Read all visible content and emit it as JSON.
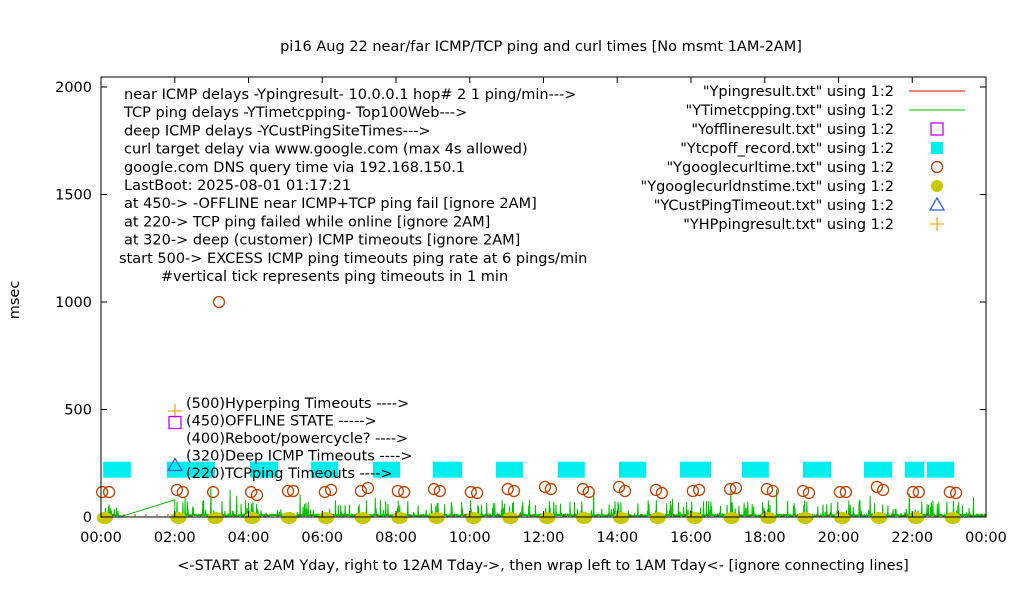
{
  "chart_data": {
    "type": "scatter",
    "title": "pi16 Aug 22  near/far ICMP/TCP ping and curl times [No msmt 1AM-2AM]",
    "xlabel": "<-START at 2AM Yday, right to 12AM Tday->, then wrap left to 1AM Tday<- [ignore connecting lines]",
    "ylabel": "msec",
    "xlim": [
      0,
      24
    ],
    "ylim": [
      0,
      2000
    ],
    "x_unit": "hours",
    "x_ticks": [
      "00:00",
      "02:00",
      "04:00",
      "06:00",
      "08:00",
      "10:00",
      "12:00",
      "14:00",
      "16:00",
      "18:00",
      "20:00",
      "22:00",
      "00:00"
    ],
    "y_ticks": [
      "0",
      "500",
      "1000",
      "1500",
      "2000"
    ],
    "grid": false,
    "legend_position": "top-right",
    "notes": [
      "near ICMP delays -Ypingresult- 10.0.0.1 hop# 2 1 ping/min--->",
      "TCP ping delays -YTimetcpping- Top100Web--->",
      "deep ICMP delays -YCustPingSiteTimes--->",
      "curl target delay via www.google.com (max 4s allowed)",
      "google.com DNS query time via 192.168.150.1",
      "LastBoot: 2025-08-01 01:17:21",
      "at 450-> -OFFLINE near ICMP+TCP ping fail [ignore 2AM]",
      "at 220-> TCP ping failed while online [ignore 2AM]",
      "at 320-> deep (customer) ICMP timeouts [ignore 2AM]",
      "start 500-> EXCESS ICMP ping timeouts ping rate at 6 pings/min",
      "        #vertical tick represents ping timeouts in 1 min"
    ],
    "level_labels": [
      {
        "text": "(500)Hyperping Timeouts ---->",
        "marker": "plus",
        "color": "#f5a623"
      },
      {
        "text": "(450)OFFLINE STATE ----->",
        "marker": "open-square",
        "color": "#c000ff"
      },
      {
        "text": "(400)Reboot/powercycle? ---->",
        "marker": "",
        "color": ""
      },
      {
        "text": "(320)Deep ICMP Timeouts ---->",
        "marker": "open-triangle",
        "color": "#3060e0"
      },
      {
        "text": "(220)TCPping Timeouts ---->",
        "marker": "",
        "color": ""
      }
    ],
    "series": [
      {
        "name": "\"Ypingresult.txt\" using 1:2",
        "style": "line",
        "color": "#ff0000",
        "level": 0
      },
      {
        "name": "\"YTimetcpping.txt\" using 1:2",
        "style": "line",
        "color": "#00c000",
        "typical_range": [
          5,
          80
        ]
      },
      {
        "name": "\"Yofflineresult.txt\" using 1:2",
        "style": "open-square",
        "color": "#c000ff",
        "points": []
      },
      {
        "name": "\"Ytcpoff_record.txt\" using 1:2",
        "style": "filled-square",
        "color": "#00eeee",
        "value": 220,
        "ranges": [
          [
            0.14,
            0.73
          ],
          [
            1.87,
            3.01
          ],
          [
            4.12,
            4.72
          ],
          [
            5.78,
            6.35
          ],
          [
            7.46,
            8.03
          ],
          [
            9.08,
            9.71
          ],
          [
            10.79,
            11.36
          ],
          [
            12.47,
            13.04
          ],
          [
            14.13,
            14.7
          ],
          [
            15.78,
            16.46
          ],
          [
            17.46,
            18.03
          ],
          [
            19.12,
            19.72
          ],
          [
            20.77,
            21.37
          ],
          [
            21.88,
            22.24
          ],
          [
            22.48,
            23.05
          ]
        ]
      },
      {
        "name": "\"Ygooglecurltime.txt\" using 1:2",
        "style": "open-circle",
        "color": "#c04000",
        "points": [
          [
            0.03,
            116
          ],
          [
            0.22,
            116
          ],
          [
            2.06,
            126
          ],
          [
            2.22,
            116
          ],
          [
            3.04,
            116
          ],
          [
            3.2,
            1000
          ],
          [
            4.07,
            116
          ],
          [
            4.23,
            102
          ],
          [
            5.07,
            121
          ],
          [
            5.21,
            121
          ],
          [
            6.07,
            116
          ],
          [
            6.24,
            126
          ],
          [
            7.05,
            121
          ],
          [
            7.24,
            135
          ],
          [
            8.05,
            121
          ],
          [
            8.22,
            116
          ],
          [
            9.03,
            130
          ],
          [
            9.19,
            121
          ],
          [
            10.03,
            116
          ],
          [
            10.2,
            112
          ],
          [
            11.03,
            130
          ],
          [
            11.2,
            121
          ],
          [
            12.04,
            140
          ],
          [
            12.2,
            130
          ],
          [
            13.07,
            130
          ],
          [
            13.23,
            116
          ],
          [
            14.05,
            140
          ],
          [
            14.21,
            121
          ],
          [
            15.05,
            126
          ],
          [
            15.21,
            112
          ],
          [
            16.05,
            121
          ],
          [
            16.22,
            126
          ],
          [
            17.06,
            130
          ],
          [
            17.22,
            135
          ],
          [
            18.06,
            130
          ],
          [
            18.22,
            121
          ],
          [
            19.04,
            121
          ],
          [
            19.2,
            112
          ],
          [
            20.04,
            116
          ],
          [
            20.2,
            116
          ],
          [
            21.04,
            140
          ],
          [
            21.21,
            126
          ],
          [
            22.02,
            116
          ],
          [
            22.18,
            116
          ],
          [
            23.02,
            116
          ],
          [
            23.19,
            112
          ]
        ]
      },
      {
        "name": "\"Ygooglecurldnstime.txt\" using 1:2",
        "style": "filled-circle",
        "color": "#c8c800",
        "points": [
          [
            0.1,
            0
          ],
          [
            2.1,
            0
          ],
          [
            3.1,
            0
          ],
          [
            4.1,
            0
          ],
          [
            5.1,
            0
          ],
          [
            6.1,
            0
          ],
          [
            7.1,
            0
          ],
          [
            8.1,
            0
          ],
          [
            9.1,
            0
          ],
          [
            10.1,
            0
          ],
          [
            11.1,
            0
          ],
          [
            12.1,
            0
          ],
          [
            13.1,
            0
          ],
          [
            14.1,
            0
          ],
          [
            15.1,
            0
          ],
          [
            16.1,
            0
          ],
          [
            17.1,
            0
          ],
          [
            18.1,
            0
          ],
          [
            19.1,
            0
          ],
          [
            20.1,
            0
          ],
          [
            21.1,
            0
          ],
          [
            22.1,
            0
          ],
          [
            23.1,
            0
          ]
        ]
      },
      {
        "name": "\"YCustPingTimeout.txt\" using 1:2",
        "style": "open-triangle",
        "color": "#3060e0",
        "points": []
      },
      {
        "name": "\"YHPpingresult.txt\" using 1:2",
        "style": "plus",
        "color": "#f5a623",
        "points": []
      }
    ]
  }
}
